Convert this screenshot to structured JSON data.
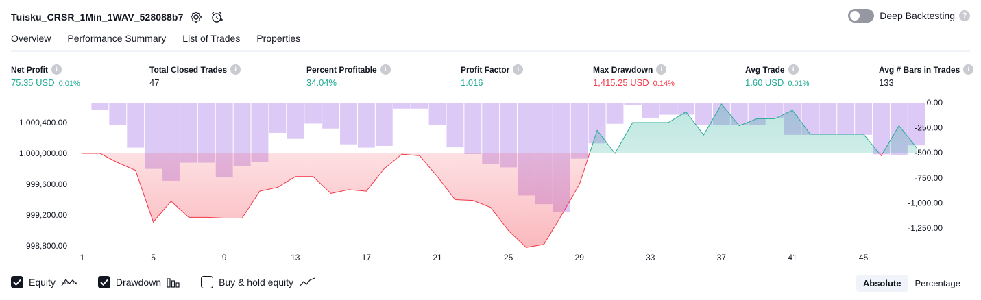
{
  "header": {
    "strategy_name": "Tuisku_CRSR_1Min_1WAV_528088b7",
    "deep_backtesting_label": "Deep Backtesting",
    "help_glyph": "?"
  },
  "tabs": [
    {
      "label": "Overview",
      "active": true
    },
    {
      "label": "Performance Summary",
      "active": false
    },
    {
      "label": "List of Trades",
      "active": false
    },
    {
      "label": "Properties",
      "active": false
    }
  ],
  "metrics": [
    {
      "label": "Net Profit",
      "value": "75.35 USD",
      "pct": "0.01%",
      "color": "green"
    },
    {
      "label": "Total Closed Trades",
      "value": "47",
      "pct": "",
      "color": "dark"
    },
    {
      "label": "Percent Profitable",
      "value": "34.04%",
      "pct": "",
      "color": "green"
    },
    {
      "label": "Profit Factor",
      "value": "1.016",
      "pct": "",
      "color": "green"
    },
    {
      "label": "Max Drawdown",
      "value": "1,415.25 USD",
      "pct": "0.14%",
      "color": "red"
    },
    {
      "label": "Avg Trade",
      "value": "1.60 USD",
      "pct": "0.01%",
      "color": "green"
    },
    {
      "label": "Avg # Bars in Trades",
      "value": "133",
      "pct": "",
      "color": "dark"
    }
  ],
  "colors": {
    "green": "#22ab94",
    "red": "#f23645",
    "equity_up": "#22ab94",
    "equity_down": "#f23645",
    "drawdown_bar": "#d7bff5"
  },
  "chart_data": {
    "type": "line",
    "x": [
      1,
      2,
      3,
      4,
      5,
      6,
      7,
      8,
      9,
      10,
      11,
      12,
      13,
      14,
      15,
      16,
      17,
      18,
      19,
      20,
      21,
      22,
      23,
      24,
      25,
      26,
      27,
      28,
      29,
      30,
      31,
      32,
      33,
      34,
      35,
      36,
      37,
      38,
      39,
      40,
      41,
      42,
      43,
      44,
      45,
      46,
      47,
      48
    ],
    "x_ticks": [
      "1",
      "5",
      "9",
      "13",
      "17",
      "21",
      "25",
      "29",
      "33",
      "37",
      "41",
      "45"
    ],
    "series": [
      {
        "name": "Equity",
        "axis": "left",
        "values": [
          1000000,
          1000000,
          999880,
          999780,
          999110,
          999380,
          999170,
          999170,
          999160,
          999160,
          999510,
          999560,
          999700,
          999700,
          999480,
          999530,
          999510,
          999800,
          999990,
          999970,
          999700,
          999400,
          999390,
          999300,
          999000,
          998780,
          998820,
          999200,
          999600,
          1000300,
          1000000,
          1000400,
          1000400,
          1000400,
          1000540,
          1000240,
          1000640,
          1000360,
          1000450,
          1000450,
          1000560,
          1000250,
          1000250,
          1000250,
          1000250,
          999970,
          1000360,
          1000070
        ]
      },
      {
        "name": "Drawdown",
        "axis": "right",
        "type": "bar",
        "values": [
          0,
          -70,
          -225,
          -448,
          -660,
          -778,
          -598,
          -598,
          -745,
          -630,
          -588,
          -300,
          -360,
          -208,
          -258,
          -415,
          -448,
          -430,
          -60,
          -60,
          -225,
          -445,
          -512,
          -615,
          -645,
          -925,
          -1012,
          -1090,
          -558,
          -405,
          -210,
          -22,
          -150,
          -120,
          -120,
          -225,
          -225,
          -225,
          -225,
          -150,
          -320,
          -320,
          -320,
          -320,
          -320,
          -515,
          -522,
          -425
        ]
      }
    ],
    "y_left": {
      "min": 998700,
      "max": 1000600,
      "ticks": [
        "1,000,400.00",
        "1,000,000.00",
        "999,600.00",
        "999,200.00",
        "998,800.00"
      ],
      "tick_values": [
        1000400,
        1000000,
        999600,
        999200,
        998800
      ]
    },
    "y_right": {
      "min": -1350,
      "max": 0,
      "ticks": [
        "0.00",
        "-250.00",
        "-500.00",
        "-750.00",
        "-1,000.00",
        "-1,250.00"
      ],
      "tick_values": [
        0,
        -250,
        -500,
        -750,
        -1000,
        -1250
      ]
    },
    "baseline": 1000000,
    "grid": false
  },
  "legend": [
    {
      "label": "Equity",
      "checked": true,
      "icon": "equity-line-icon"
    },
    {
      "label": "Drawdown",
      "checked": true,
      "icon": "drawdown-bars-icon"
    },
    {
      "label": "Buy & hold equity",
      "checked": false,
      "icon": "buy-hold-line-icon"
    }
  ],
  "mode": {
    "absolute": "Absolute",
    "percentage": "Percentage"
  }
}
